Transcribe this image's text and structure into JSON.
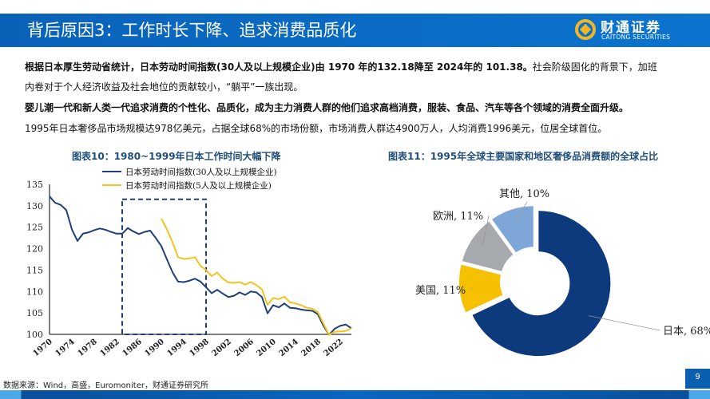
{
  "header": {
    "title": "背后原因3：工作时长下降、追求消费品质化",
    "logo_cn": "财通证券",
    "logo_en": "CAITONG SECURITIES"
  },
  "body": {
    "p1_bold": "根据日本厚生劳动省统计，日本劳动时间指数(30人及以上规模企业)由 1970 年的132.18降至 2024年的 101.38。",
    "p1_rest": "社会阶级固化的背景下，加班",
    "p1_line2": "内卷对于个人经济收益及社会地位的贡献较小，“躺平”一族出现。",
    "p2": "婴儿潮一代和新人类一代追求消费的个性化、品质化，成为主力消费人群的他们追求高档消费，服装、食品、汽车等各个领域的消费全面升级。",
    "p3": "1995年日本奢侈品市场规模达978亿美元，占据全球68%的市场份额，市场消费人群达4900万人，人均消费1996美元，位居全球首位。"
  },
  "chart_data": [
    {
      "type": "line",
      "title": "图表10：1980~1999年日本工作时间大幅下降",
      "ylim": [
        100,
        135
      ],
      "yticks": [
        "100",
        "105",
        "110",
        "115",
        "120",
        "125",
        "130",
        "135"
      ],
      "xlim": [
        1970,
        2024
      ],
      "xticks": [
        "1970",
        "1974",
        "1978",
        "1982",
        "1986",
        "1990",
        "1994",
        "1998",
        "2002",
        "2006",
        "2010",
        "2014",
        "2018",
        "2022"
      ],
      "highlight_range": [
        1983,
        1998
      ],
      "legend_position": "top",
      "series": [
        {
          "name": "日本劳动时间指数(30人及以上规模企业)",
          "color": "#1f3f7a",
          "x_start": 1970,
          "values": [
            132.2,
            130.7,
            130.2,
            129.0,
            124.5,
            121.8,
            123.5,
            123.8,
            124.3,
            124.7,
            124.4,
            123.9,
            123.5,
            123.5,
            124.8,
            124.0,
            123.4,
            123.9,
            124.2,
            122.5,
            120.6,
            117.5,
            114.5,
            112.3,
            112.2,
            112.5,
            113.0,
            112.3,
            111.0,
            109.6,
            110.4,
            109.5,
            108.7,
            109.0,
            109.8,
            109.2,
            110.0,
            109.8,
            108.7,
            104.9,
            106.8,
            106.3,
            107.2,
            106.2,
            106.1,
            105.8,
            105.6,
            105.5,
            104.7,
            102.0,
            99.9,
            101.3,
            102.0,
            102.3,
            101.4
          ]
        },
        {
          "name": "日本劳动时间指数(5人及以上规模企业)",
          "color": "#f2c41d",
          "x_start": 1990,
          "values": [
            127.0,
            124.5,
            121.5,
            118.0,
            117.6,
            117.7,
            118.0,
            116.0,
            115.0,
            113.6,
            114.4,
            113.0,
            112.1,
            112.0,
            112.2,
            111.6,
            112.2,
            111.5,
            110.5,
            106.9,
            108.5,
            108.2,
            108.8,
            107.5,
            107.2,
            106.8,
            106.2,
            106.0,
            105.2,
            102.5,
            99.9,
            100.6,
            100.7,
            100.8,
            101.4
          ]
        }
      ]
    },
    {
      "type": "pie",
      "title": "图表11：1995年全球主要国家和地区奢侈品消费额的全球占比",
      "slices": [
        {
          "label": "日本, 68%",
          "value": 68,
          "color": "#0d3a7c"
        },
        {
          "label": "美国, 11%",
          "value": 11,
          "color": "#f5c000"
        },
        {
          "label": "欧洲, 11%",
          "value": 11,
          "color": "#a6a9ae"
        },
        {
          "label": "其他, 10%",
          "value": 10,
          "color": "#7ea6d6"
        }
      ]
    }
  ],
  "footer": {
    "source": "数据来源：Wind，高盛，Euromoniter，财通证券研究所",
    "page": "9"
  }
}
